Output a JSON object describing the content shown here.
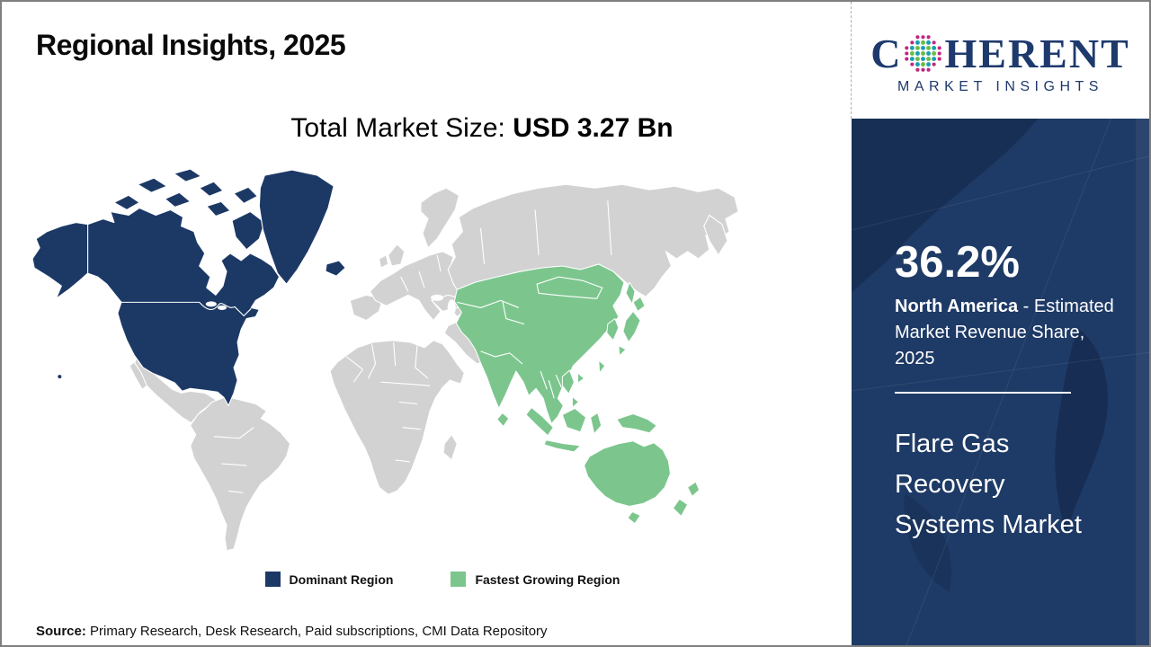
{
  "page": {
    "title": "Regional Insights, 2025",
    "market_size_label": "Total Market Size: ",
    "market_size_value": "USD 3.27 Bn",
    "source_label": "Source:",
    "source_text": " Primary Research, Desk Research, Paid subscriptions, CMI Data Repository"
  },
  "logo": {
    "prefix": "C",
    "suffix": "HERENT",
    "subtitle": "MARKET INSIGHTS",
    "colors": {
      "text": "#1e3a6d",
      "dot_teal": "#1a9fae",
      "dot_green": "#69bd45",
      "dot_magenta": "#c22580"
    }
  },
  "legend": [
    {
      "label": "Dominant Region",
      "color": "#1c3966"
    },
    {
      "label": "Fastest Growing Region",
      "color": "#7cc68e"
    }
  ],
  "sidebar": {
    "stat_value": "36.2%",
    "stat_region": "North America",
    "stat_description": " - Estimated Market Revenue Share, 2025",
    "market_name": "Flare Gas Recovery Systems Market",
    "background": "#1e3a66",
    "text_color": "#ffffff"
  },
  "map": {
    "dominant_region": "North America",
    "fastest_growing_region": "Asia Pacific",
    "colors": {
      "dominant": "#1c3966",
      "growing": "#7cc68e",
      "other": "#d2d2d2",
      "border": "#ffffff",
      "ocean": "#ffffff"
    }
  },
  "chart_data": {
    "type": "heatmap",
    "subtype": "choropleth-world-map",
    "title": "Regional Insights, 2025",
    "total_market_size": "USD 3.27 Bn",
    "regions": [
      {
        "name": "North America",
        "role": "Dominant Region",
        "estimated_market_revenue_share_2025_pct": 36.2,
        "color": "#1c3966"
      },
      {
        "name": "Asia Pacific",
        "role": "Fastest Growing Region",
        "color": "#7cc68e"
      },
      {
        "name": "Rest of World",
        "role": "Not highlighted",
        "color": "#d2d2d2"
      }
    ],
    "legend_entries": [
      "Dominant Region",
      "Fastest Growing Region"
    ],
    "legend_position": "bottom-center",
    "market": "Flare Gas Recovery Systems Market",
    "source": "Primary Research, Desk Research, Paid subscriptions, CMI Data Repository"
  }
}
